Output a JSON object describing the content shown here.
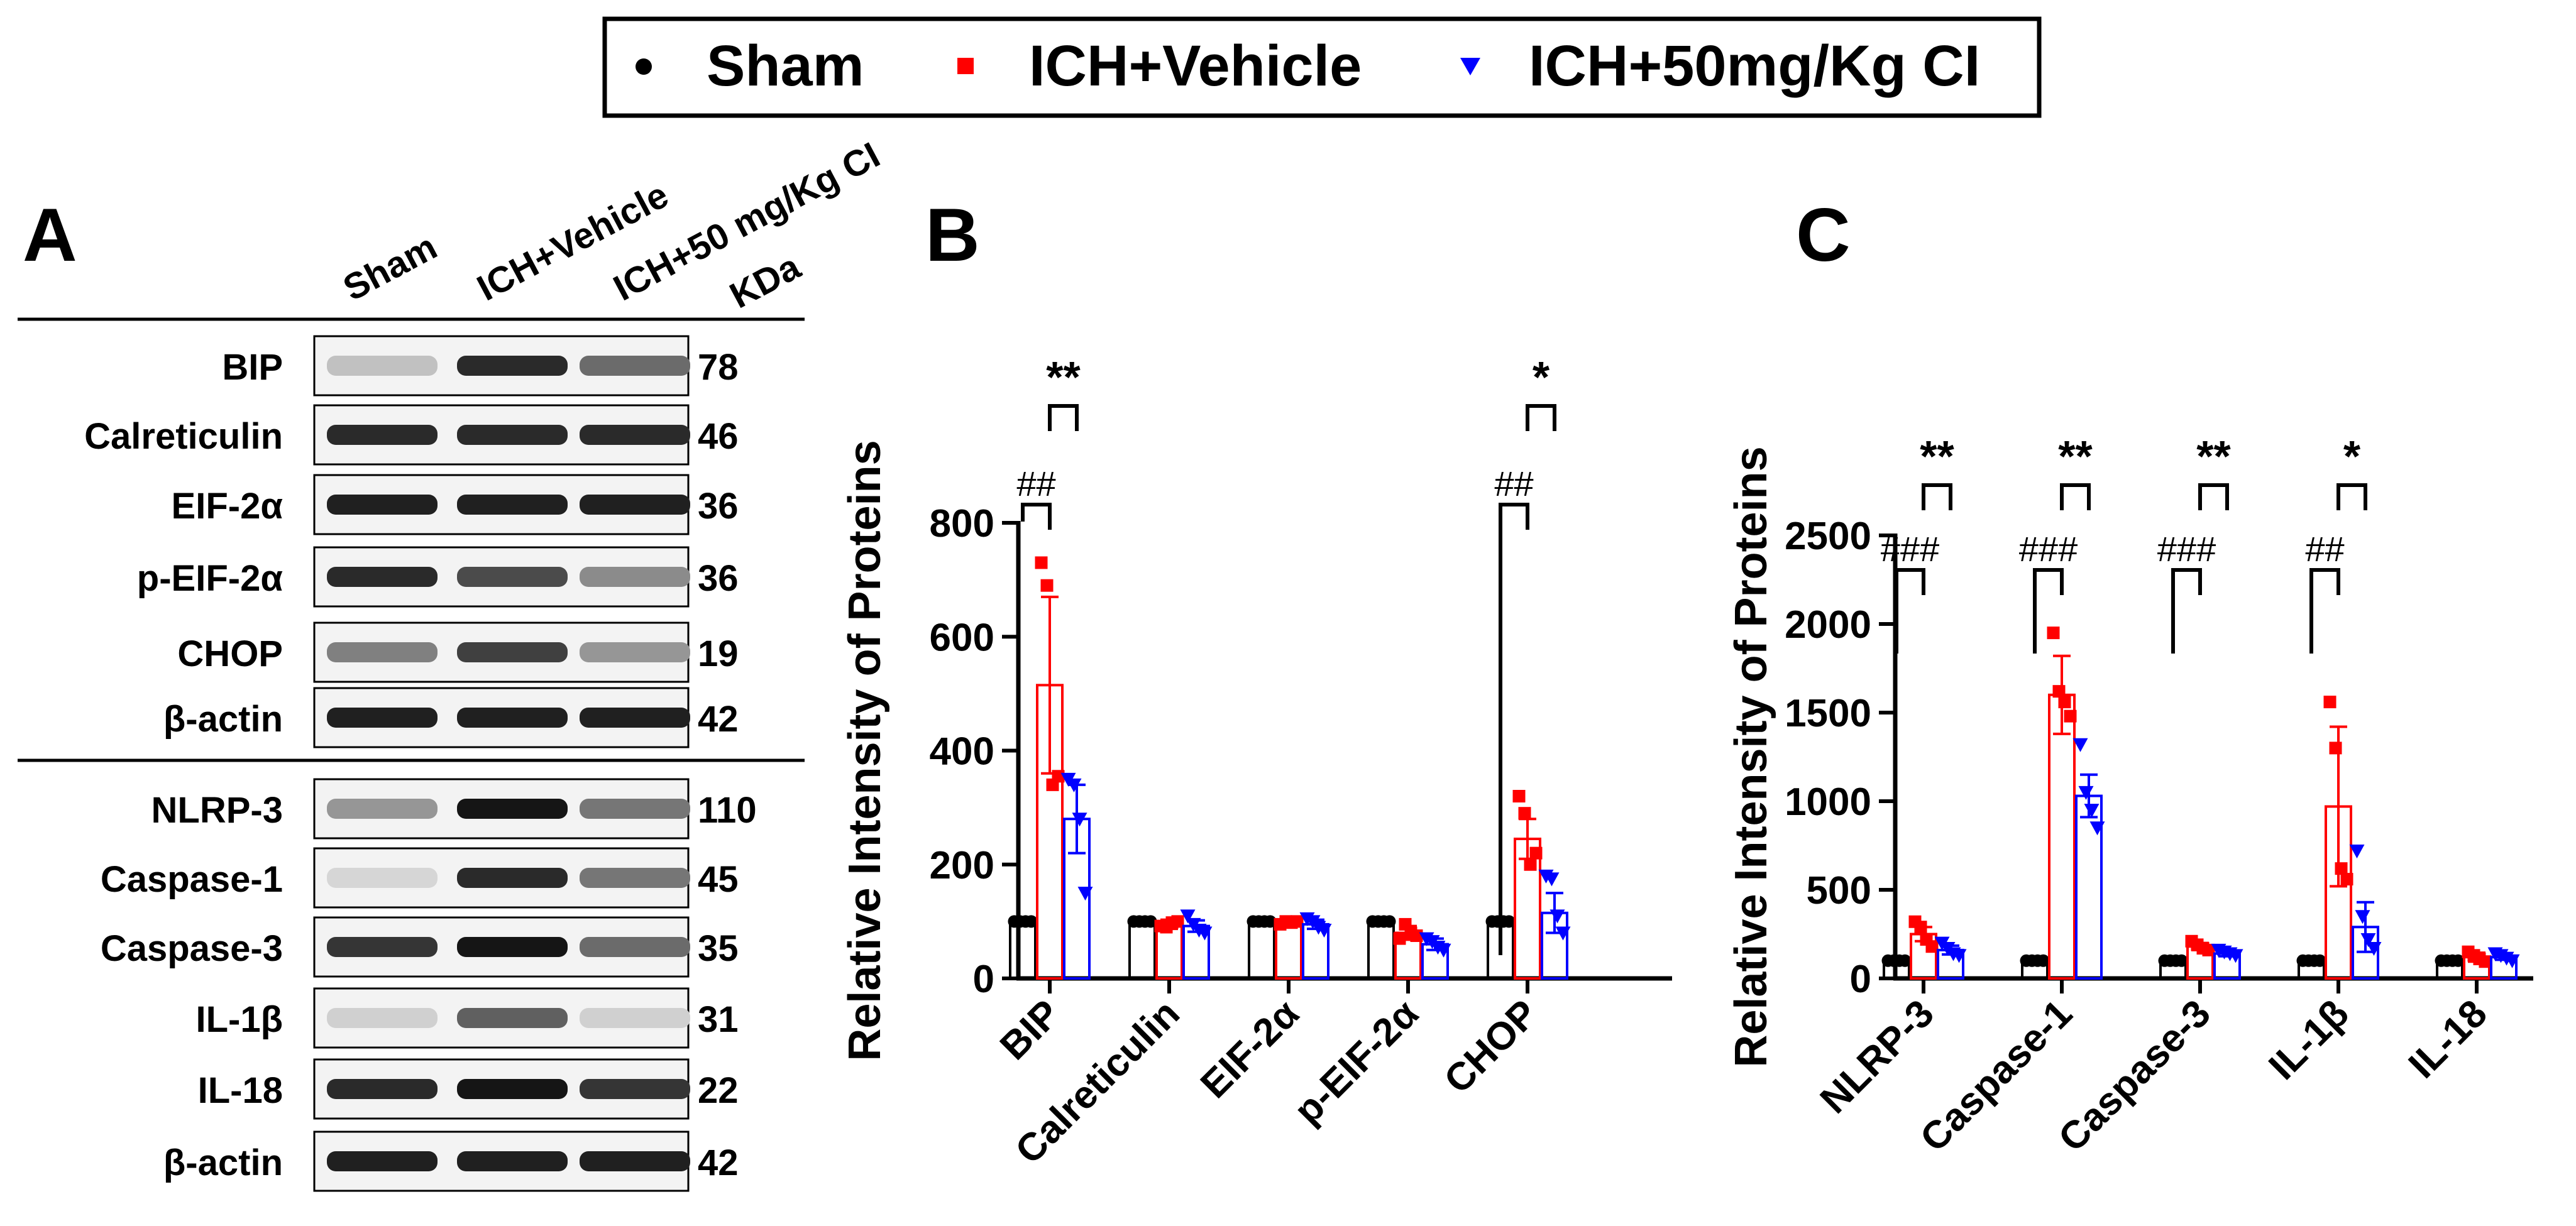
{
  "legend": {
    "items": [
      {
        "label": "Sham",
        "marker": "circle",
        "color": "#000000"
      },
      {
        "label": "ICH+Vehicle",
        "marker": "square",
        "color": "#ff0000"
      },
      {
        "label": "ICH+50mg/Kg CI",
        "marker": "triangle-down",
        "color": "#0000ff"
      }
    ]
  },
  "panel_a": {
    "letter": "A",
    "lane_labels": [
      "Sham",
      "ICH+Vehicle",
      "ICH+50 mg/Kg CI"
    ],
    "kda_header": "KDa",
    "blots": [
      {
        "protein": "BIP",
        "kda": "78",
        "intensity": [
          0.15,
          0.85,
          0.55
        ]
      },
      {
        "protein": "Calreticulin",
        "kda": "46",
        "intensity": [
          0.85,
          0.85,
          0.85
        ]
      },
      {
        "protein": "EIF-2α",
        "kda": "36",
        "intensity": [
          0.9,
          0.9,
          0.9
        ]
      },
      {
        "protein": "p-EIF-2α",
        "kda": "36",
        "intensity": [
          0.85,
          0.7,
          0.4
        ]
      },
      {
        "protein": "CHOP",
        "kda": "19",
        "intensity": [
          0.45,
          0.75,
          0.35
        ]
      },
      {
        "protein": "β-actin",
        "kda": "42",
        "intensity": [
          0.9,
          0.9,
          0.9
        ]
      },
      {
        "protein": "NLRP-3",
        "kda": "110",
        "intensity": [
          0.35,
          0.95,
          0.5
        ]
      },
      {
        "protein": "Caspase-1",
        "kda": "45",
        "intensity": [
          0.05,
          0.85,
          0.5
        ]
      },
      {
        "protein": "Caspase-3",
        "kda": "35",
        "intensity": [
          0.8,
          0.95,
          0.55
        ]
      },
      {
        "protein": "IL-1β",
        "kda": "31",
        "intensity": [
          0.08,
          0.6,
          0.08
        ]
      },
      {
        "protein": "IL-18",
        "kda": "22",
        "intensity": [
          0.85,
          0.95,
          0.8
        ]
      },
      {
        "protein": "β-actin",
        "kda": "42",
        "intensity": [
          0.9,
          0.9,
          0.9
        ]
      }
    ]
  },
  "chart_data": [
    {
      "panel": "B",
      "type": "bar",
      "ylabel": "Relative Intensity of Proteins",
      "ylim": [
        0,
        800
      ],
      "yticks": [
        0,
        200,
        400,
        600,
        800
      ],
      "categories": [
        "BIP",
        "Calreticulin",
        "EIF-2α",
        "p-EIF-2α",
        "CHOP"
      ],
      "series": [
        {
          "name": "Sham",
          "color": "#000000",
          "marker": "circle",
          "values": [
            100,
            100,
            100,
            100,
            100
          ],
          "errors": [
            0,
            0,
            0,
            0,
            0
          ],
          "points": [
            [
              100,
              100,
              100,
              100
            ],
            [
              100,
              100,
              100,
              100
            ],
            [
              100,
              100,
              100,
              100
            ],
            [
              100,
              100,
              100,
              100
            ],
            [
              100,
              100,
              100,
              100
            ]
          ]
        },
        {
          "name": "ICH+Vehicle",
          "color": "#ff0000",
          "marker": "square",
          "values": [
            515,
            95,
            98,
            80,
            245
          ],
          "errors": [
            155,
            8,
            5,
            12,
            35
          ],
          "points": [
            [
              730,
              690,
              340,
              355
            ],
            [
              92,
              90,
              98,
              100
            ],
            [
              95,
              100,
              98,
              100
            ],
            [
              70,
              95,
              80,
              75
            ],
            [
              320,
              290,
              200,
              220
            ]
          ]
        },
        {
          "name": "ICH+50mg/Kg CI",
          "color": "#0000ff",
          "marker": "triangle-down",
          "values": [
            280,
            92,
            95,
            60,
            115
          ],
          "errors": [
            60,
            10,
            8,
            10,
            35
          ],
          "points": [
            [
              350,
              340,
              280,
              150
            ],
            [
              110,
              95,
              85,
              80
            ],
            [
              105,
              100,
              90,
              85
            ],
            [
              70,
              65,
              55,
              50
            ],
            [
              180,
              175,
              110,
              80
            ]
          ]
        }
      ],
      "annotations": [
        {
          "category": "BIP",
          "pair": [
            "Sham",
            "ICH+Vehicle"
          ],
          "label": "##"
        },
        {
          "category": "BIP",
          "pair": [
            "ICH+Vehicle",
            "ICH+50mg/Kg CI"
          ],
          "label": "**"
        },
        {
          "category": "CHOP",
          "pair": [
            "Sham",
            "ICH+Vehicle"
          ],
          "label": "##"
        },
        {
          "category": "CHOP",
          "pair": [
            "ICH+Vehicle",
            "ICH+50mg/Kg CI"
          ],
          "label": "*"
        }
      ]
    },
    {
      "panel": "C",
      "type": "bar",
      "ylabel": "Relative Intensity of Proteins",
      "ylim": [
        0,
        2500
      ],
      "yticks": [
        0,
        500,
        1000,
        1500,
        2000,
        2500
      ],
      "categories": [
        "NLRP-3",
        "Caspase-1",
        "Caspase-3",
        "IL-1β",
        "IL-18"
      ],
      "series": [
        {
          "name": "Sham",
          "color": "#000000",
          "marker": "circle",
          "values": [
            100,
            100,
            100,
            100,
            100
          ],
          "errors": [
            0,
            0,
            0,
            0,
            0
          ],
          "points": [
            [
              100,
              100,
              100,
              100
            ],
            [
              100,
              100,
              100,
              100
            ],
            [
              100,
              100,
              100,
              100
            ],
            [
              100,
              100,
              100,
              100
            ],
            [
              100,
              100,
              100,
              100
            ]
          ]
        },
        {
          "name": "ICH+Vehicle",
          "color": "#ff0000",
          "marker": "square",
          "values": [
            250,
            1600,
            180,
            970,
            120
          ],
          "errors": [
            40,
            220,
            20,
            450,
            25
          ],
          "points": [
            [
              320,
              290,
              220,
              180
            ],
            [
              1950,
              1620,
              1560,
              1480
            ],
            [
              210,
              190,
              170,
              160
            ],
            [
              1560,
              1300,
              620,
              560
            ],
            [
              150,
              130,
              110,
              95
            ]
          ]
        },
        {
          "name": "ICH+50mg/Kg CI",
          "color": "#0000ff",
          "marker": "triangle-down",
          "values": [
            160,
            1030,
            140,
            290,
            120
          ],
          "errors": [
            25,
            120,
            15,
            140,
            15
          ],
          "points": [
            [
              200,
              170,
              140,
              130
            ],
            [
              1320,
              1050,
              950,
              850
            ],
            [
              160,
              150,
              140,
              130
            ],
            [
              720,
              350,
              220,
              170
            ],
            [
              140,
              130,
              115,
              100
            ]
          ]
        }
      ],
      "annotations": [
        {
          "category": "NLRP-3",
          "pair": [
            "Sham",
            "ICH+Vehicle"
          ],
          "label": "###"
        },
        {
          "category": "NLRP-3",
          "pair": [
            "ICH+Vehicle",
            "ICH+50mg/Kg CI"
          ],
          "label": "**"
        },
        {
          "category": "Caspase-1",
          "pair": [
            "Sham",
            "ICH+Vehicle"
          ],
          "label": "###"
        },
        {
          "category": "Caspase-1",
          "pair": [
            "ICH+Vehicle",
            "ICH+50mg/Kg CI"
          ],
          "label": "**"
        },
        {
          "category": "Caspase-3",
          "pair": [
            "Sham",
            "ICH+Vehicle"
          ],
          "label": "###"
        },
        {
          "category": "Caspase-3",
          "pair": [
            "ICH+Vehicle",
            "ICH+50mg/Kg CI"
          ],
          "label": "**"
        },
        {
          "category": "IL-1β",
          "pair": [
            "Sham",
            "ICH+Vehicle"
          ],
          "label": "##"
        },
        {
          "category": "IL-1β",
          "pair": [
            "ICH+Vehicle",
            "ICH+50mg/Kg CI"
          ],
          "label": "*"
        }
      ]
    }
  ]
}
